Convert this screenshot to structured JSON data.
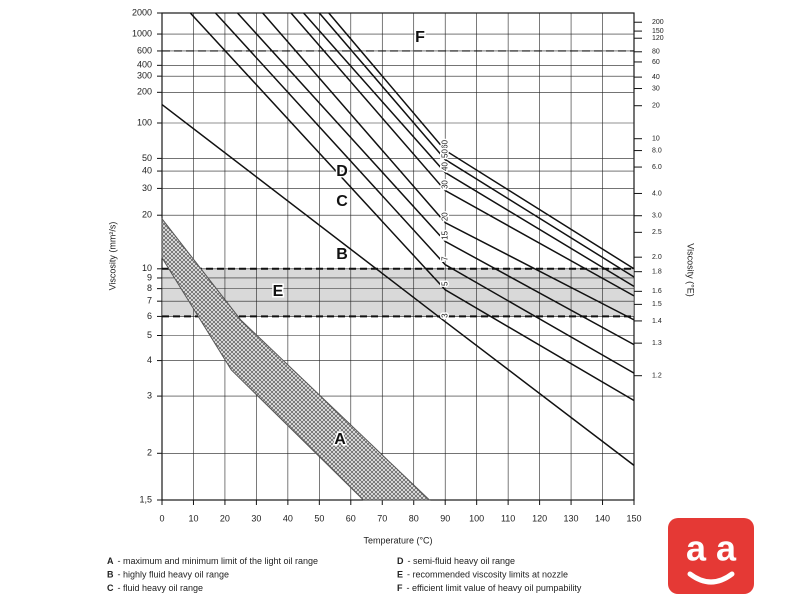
{
  "chart_data": {
    "type": "line",
    "yscale": "walther",
    "y2scale": "engler",
    "grid": true,
    "color": "#111111",
    "x_label": "Temperature (°C)",
    "y_label": "Viscosity (mm²/s)",
    "y2_label": "Viscosity (°E)",
    "xlim": [
      0,
      150
    ],
    "xticks": [
      0,
      10,
      20,
      30,
      40,
      50,
      60,
      70,
      80,
      90,
      100,
      110,
      120,
      130,
      140,
      150
    ],
    "ylim": [
      1.5,
      2000
    ],
    "yticks": [
      2000,
      1000,
      600,
      400,
      300,
      200,
      100,
      50,
      40,
      30,
      20,
      10,
      9,
      8,
      7,
      6,
      5,
      4,
      3,
      2,
      {
        "value": 1.5,
        "label": "1,5"
      }
    ],
    "y2ticks": [
      200,
      150,
      120,
      80,
      60,
      40,
      30,
      20,
      10,
      {
        "value": 8,
        "label": "8.0"
      },
      {
        "value": 6,
        "label": "6.0"
      },
      {
        "value": 4,
        "label": "4.0"
      },
      {
        "value": 3,
        "label": "3.0"
      },
      2.5,
      {
        "value": 2,
        "label": "2.0"
      },
      1.8,
      1.6,
      1.5,
      1.4,
      1.3,
      1.2
    ],
    "series": [
      {
        "label": "60",
        "x": [
          53,
          90,
          150
        ],
        "values": [
          2000,
          58,
          10
        ]
      },
      {
        "label": "50",
        "x": [
          50,
          90,
          150
        ],
        "values": [
          2000,
          49,
          9.1
        ]
      },
      {
        "label": "40",
        "x": [
          45,
          90,
          150
        ],
        "values": [
          2000,
          39,
          8.2
        ]
      },
      {
        "label": "30",
        "x": [
          41,
          90,
          150
        ],
        "values": [
          2000,
          29,
          7.4
        ]
      },
      {
        "label": "20",
        "x": [
          32,
          90,
          150
        ],
        "values": [
          2000,
          18,
          5.8
        ]
      },
      {
        "label": "15",
        "x": [
          24,
          90,
          150
        ],
        "values": [
          2000,
          14,
          4.6
        ]
      },
      {
        "label": "7",
        "x": [
          17,
          90,
          150
        ],
        "values": [
          2000,
          10.5,
          3.6
        ]
      },
      {
        "label": "5",
        "x": [
          9,
          90,
          150
        ],
        "values": [
          2000,
          7.9,
          2.9
        ]
      },
      {
        "label": "3",
        "x": [
          0,
          90,
          150
        ],
        "values": [
          150,
          5.7,
          1.85
        ]
      }
    ],
    "band": {
      "x_upper": [
        0,
        25,
        85
      ],
      "upper": [
        19,
        5.8,
        1.5
      ],
      "x_lower": [
        0,
        22,
        64
      ],
      "lower": [
        11.4,
        3.7,
        1.5
      ],
      "color": "#555555"
    },
    "recommended_range": {
      "low": 6,
      "high": 10,
      "color": "#d9d9d9"
    },
    "pumpability_limit": 600,
    "annotations": [
      "F",
      "D",
      "C",
      "B",
      "E",
      "A"
    ]
  },
  "notes": [
    {
      "key": "A",
      "text": "- maximum and minimum limit of the light oil range"
    },
    {
      "key": "B",
      "text": "- highly fluid heavy oil range"
    },
    {
      "key": "C",
      "text": "- fluid heavy oil range"
    },
    {
      "key": "D",
      "text": "- semi-fluid heavy oil range"
    },
    {
      "key": "E",
      "text": "- recommended viscosity limits at nozzle"
    },
    {
      "key": "F",
      "text": "- efficient limit value of heavy oil pumpability"
    }
  ],
  "logo": "a a"
}
